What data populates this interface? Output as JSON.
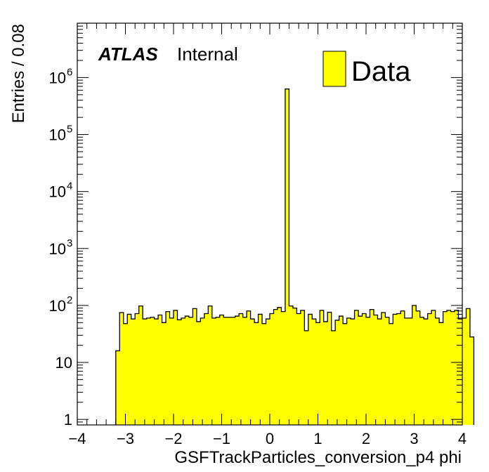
{
  "chart_data": {
    "type": "bar",
    "style": "histogram-step-filled",
    "xlabel": "GSFTrackParticles_conversion_p4 phi",
    "ylabel": "Entries / 0.08",
    "xlim": [
      -4,
      4
    ],
    "ylim": [
      0.8,
      9000000
    ],
    "y_scale": "log",
    "grid": false,
    "bin_width": 0.08,
    "bin_start": -3.2,
    "x_ticks": [
      -4,
      -3,
      -2,
      -1,
      0,
      1,
      2,
      3,
      4
    ],
    "x_tick_labels": [
      "−4",
      "−3",
      "−2",
      "−1",
      "0",
      "1",
      "2",
      "3",
      "4"
    ],
    "y_ticks": [
      {
        "value": 1,
        "base": "1",
        "exp": ""
      },
      {
        "value": 10,
        "base": "10",
        "exp": ""
      },
      {
        "value": 100,
        "base": "10",
        "exp": "2"
      },
      {
        "value": 1000,
        "base": "10",
        "exp": "3"
      },
      {
        "value": 10000,
        "base": "10",
        "exp": "4"
      },
      {
        "value": 100000,
        "base": "10",
        "exp": "5"
      },
      {
        "value": 1000000,
        "base": "10",
        "exp": "6"
      }
    ],
    "legend": {
      "placement": "top-right",
      "entries": [
        {
          "label": "Data",
          "color": "#ffff00"
        }
      ]
    },
    "series": [
      {
        "name": "Data",
        "color": "#ffff00",
        "values": [
          16,
          75,
          48,
          70,
          58,
          72,
          98,
          58,
          60,
          62,
          58,
          68,
          50,
          78,
          60,
          82,
          56,
          60,
          65,
          62,
          88,
          52,
          60,
          72,
          98,
          60,
          62,
          68,
          62,
          62,
          62,
          65,
          72,
          62,
          80,
          58,
          50,
          70,
          48,
          58,
          72,
          85,
          92,
          78,
          630000,
          98,
          90,
          72,
          82,
          36,
          70,
          58,
          50,
          82,
          52,
          76,
          36,
          55,
          65,
          48,
          60,
          58,
          82,
          65,
          72,
          62,
          85,
          68,
          58,
          75,
          62,
          48,
          70,
          72,
          80,
          60,
          60,
          100,
          80,
          62,
          58,
          72,
          82,
          60,
          50,
          78,
          82,
          78,
          82,
          58,
          60,
          88,
          28
        ]
      }
    ]
  },
  "annotations": {
    "experiment": "ATLAS",
    "status": "Internal"
  },
  "colors": {
    "fill": "#ffff00",
    "line": "#000000",
    "background": "#ffffff"
  }
}
